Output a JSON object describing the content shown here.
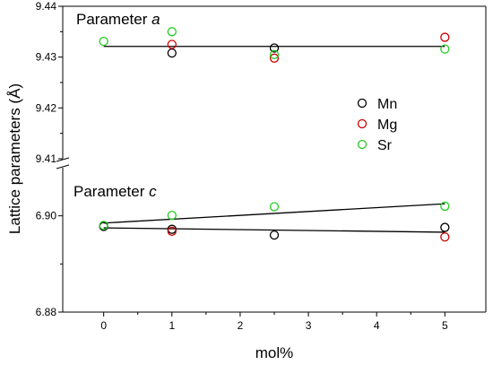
{
  "chart_data": {
    "type": "scatter",
    "xlabel": "mol%",
    "ylabel": "Lattice parameters (Å)",
    "xlim": [
      -0.6,
      5.6
    ],
    "x_ticks": [
      0,
      1,
      2,
      3,
      4,
      5
    ],
    "x_tick_labels": [
      "0",
      "1",
      "2",
      "3",
      "4",
      "5"
    ],
    "grid": false,
    "legend_placement": "center-right",
    "legend": [
      "Mn",
      "Mg",
      "Sr"
    ],
    "series_colors": {
      "Mn": "#000000",
      "Mg": "#cc0000",
      "Sr": "#22cc22"
    },
    "panels": [
      {
        "label": "Parameter",
        "label_italic": "a",
        "ylim": [
          9.41,
          9.44
        ],
        "y_ticks": [
          9.41,
          9.42,
          9.43,
          9.44
        ],
        "y_tick_labels": [
          "9.41",
          "9.42",
          "9.43",
          "9.44"
        ],
        "series": [
          {
            "name": "Mn",
            "x": [
              1,
              2.5
            ],
            "y": [
              9.4308,
              9.4318
            ]
          },
          {
            "name": "Mg",
            "x": [
              1,
              2.5,
              5
            ],
            "y": [
              9.4325,
              9.4298,
              9.4339
            ]
          },
          {
            "name": "Sr",
            "x": [
              0,
              1,
              2.5,
              5
            ],
            "y": [
              9.4331,
              9.435,
              9.4305,
              9.4316
            ]
          }
        ],
        "fit_lines": [
          {
            "x": [
              0,
              5
            ],
            "y": [
              9.4321,
              9.4321
            ]
          }
        ]
      },
      {
        "label": "Parameter",
        "label_italic": "c",
        "ylim": [
          6.88,
          6.91
        ],
        "y_ticks": [
          6.88,
          6.9
        ],
        "y_tick_labels": [
          "6.88",
          "6.90"
        ],
        "series": [
          {
            "name": "Mn",
            "x": [
              0,
              1,
              2.5,
              5
            ],
            "y": [
              6.8978,
              6.8972,
              6.896,
              6.8976
            ]
          },
          {
            "name": "Mg",
            "x": [
              1,
              5
            ],
            "y": [
              6.8968,
              6.8956
            ]
          },
          {
            "name": "Sr",
            "x": [
              0,
              1,
              2.5,
              5
            ],
            "y": [
              6.898,
              6.9001,
              6.9019,
              6.902
            ]
          }
        ],
        "fit_lines": [
          {
            "x": [
              0,
              5
            ],
            "y": [
              6.8975,
              6.8966
            ]
          },
          {
            "x": [
              0,
              5
            ],
            "y": [
              6.8985,
              6.9025
            ]
          }
        ]
      }
    ]
  }
}
